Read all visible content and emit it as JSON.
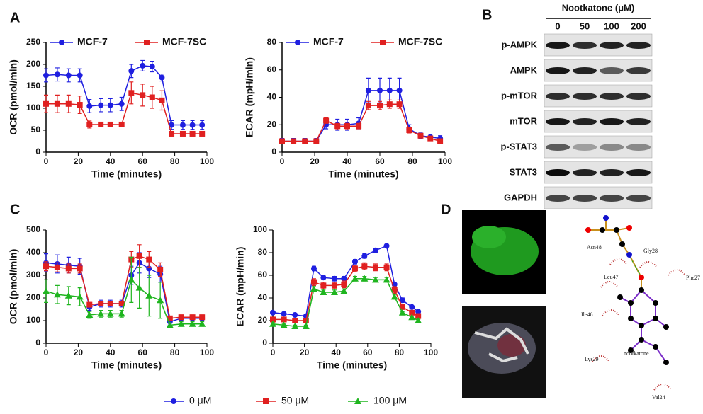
{
  "panels": [
    "A",
    "B",
    "C",
    "D"
  ],
  "chart_data": [
    {
      "type": "line",
      "x_label": "Time (minutes)",
      "y_label": "OCR (pmol/min)",
      "legend": "top",
      "xlim": [
        0,
        100
      ],
      "xticks": [
        0,
        20,
        40,
        60,
        80,
        100
      ],
      "ylim": [
        0,
        250
      ],
      "yticks": [
        0,
        50,
        100,
        150,
        200,
        250
      ],
      "x": [
        0,
        7,
        14,
        21,
        27,
        34,
        40,
        47,
        53,
        60,
        66,
        72,
        78,
        85,
        91,
        97
      ],
      "series": [
        {
          "name": "MCF-7",
          "color": "#1f1fe0",
          "marker": "circle",
          "values": [
            175,
            177,
            175,
            175,
            105,
            107,
            107,
            110,
            185,
            197,
            195,
            170,
            62,
            62,
            62,
            62
          ],
          "errors": [
            15,
            15,
            15,
            15,
            15,
            15,
            15,
            15,
            15,
            12,
            12,
            8,
            10,
            10,
            10,
            10
          ]
        },
        {
          "name": "MCF-7SC",
          "color": "#e02020",
          "marker": "square",
          "values": [
            110,
            110,
            110,
            108,
            63,
            63,
            63,
            63,
            135,
            130,
            125,
            118,
            42,
            42,
            42,
            42
          ],
          "errors": [
            20,
            20,
            20,
            20,
            8,
            5,
            5,
            5,
            25,
            25,
            25,
            22,
            5,
            5,
            5,
            5
          ]
        }
      ]
    },
    {
      "type": "line",
      "x_label": "Time (minutes)",
      "y_label": "ECAR (mpH/min)",
      "legend": "top",
      "xlim": [
        0,
        100
      ],
      "xticks": [
        0,
        20,
        40,
        60,
        80,
        100
      ],
      "ylim": [
        0,
        80
      ],
      "yticks": [
        0,
        20,
        40,
        60,
        80
      ],
      "x": [
        0,
        7,
        14,
        21,
        27,
        34,
        40,
        47,
        53,
        60,
        66,
        72,
        78,
        85,
        91,
        97
      ],
      "series": [
        {
          "name": "MCF-7",
          "color": "#1f1fe0",
          "marker": "circle",
          "values": [
            8,
            8,
            8,
            8,
            20,
            20,
            20,
            21,
            45,
            45,
            45,
            45,
            17,
            12,
            11,
            10
          ],
          "errors": [
            2,
            2,
            2,
            2,
            3,
            4,
            4,
            4,
            9,
            9,
            9,
            9,
            3,
            2,
            2,
            2
          ]
        },
        {
          "name": "MCF-7SC",
          "color": "#e02020",
          "marker": "square",
          "values": [
            8,
            8,
            8,
            8,
            23,
            19,
            19,
            19,
            34,
            34,
            35,
            35,
            16,
            12,
            10,
            8
          ],
          "errors": [
            1,
            1,
            1,
            1,
            2,
            2,
            2,
            2,
            3,
            3,
            3,
            3,
            2,
            1,
            1,
            1
          ]
        }
      ]
    },
    {
      "type": "line",
      "x_label": "Time (minutes)",
      "y_label": "OCR (pmol/min)",
      "legend": "bottom",
      "xlim": [
        0,
        100
      ],
      "xticks": [
        0,
        20,
        40,
        60,
        80,
        100
      ],
      "ylim": [
        0,
        500
      ],
      "yticks": [
        0,
        100,
        200,
        300,
        400,
        500
      ],
      "x": [
        0,
        7,
        14,
        21,
        27,
        34,
        40,
        47,
        53,
        58,
        64,
        71,
        77,
        84,
        91,
        97
      ],
      "series": [
        {
          "name": "0 μM",
          "color": "#1f1fe0",
          "marker": "circle",
          "values": [
            355,
            350,
            345,
            340,
            160,
            175,
            175,
            175,
            300,
            355,
            330,
            305,
            95,
            110,
            110,
            110
          ],
          "errors": [
            40,
            40,
            35,
            35,
            15,
            15,
            15,
            15,
            40,
            45,
            40,
            35,
            15,
            10,
            10,
            10
          ]
        },
        {
          "name": "50 μM",
          "color": "#e02020",
          "marker": "square",
          "values": [
            340,
            335,
            330,
            330,
            170,
            175,
            175,
            175,
            370,
            385,
            370,
            325,
            110,
            115,
            115,
            115
          ],
          "errors": [
            20,
            20,
            20,
            20,
            10,
            10,
            10,
            10,
            35,
            50,
            35,
            30,
            10,
            10,
            10,
            10
          ]
        },
        {
          "name": "100 μM",
          "color": "#1fb51f",
          "marker": "triangle",
          "values": [
            230,
            215,
            210,
            205,
            125,
            130,
            130,
            130,
            280,
            245,
            210,
            190,
            80,
            85,
            85,
            85
          ],
          "errors": [
            50,
            40,
            40,
            40,
            15,
            15,
            15,
            15,
            100,
            90,
            90,
            80,
            10,
            10,
            10,
            10
          ]
        }
      ]
    },
    {
      "type": "line",
      "x_label": "Time (minutes)",
      "y_label": "ECAR (mpH/min)",
      "xlim": [
        0,
        100
      ],
      "xticks": [
        0,
        20,
        40,
        60,
        80,
        100
      ],
      "ylim": [
        0,
        100
      ],
      "yticks": [
        0,
        20,
        40,
        60,
        80,
        100
      ],
      "x": [
        0,
        7,
        14,
        21,
        26,
        32,
        39,
        45,
        52,
        58,
        65,
        72,
        77,
        82,
        88,
        92
      ],
      "series": [
        {
          "color": "#1f1fe0",
          "marker": "circle",
          "values": [
            27,
            26,
            25,
            24,
            66,
            58,
            57,
            57,
            72,
            77,
            82,
            86,
            52,
            38,
            32,
            28
          ],
          "errors": [
            1,
            1,
            1,
            1,
            2,
            2,
            2,
            2,
            2,
            2,
            2,
            1,
            2,
            2,
            1,
            1
          ]
        },
        {
          "color": "#e02020",
          "marker": "square",
          "values": [
            21,
            21,
            20,
            20,
            54,
            51,
            51,
            52,
            66,
            68,
            67,
            67,
            47,
            32,
            27,
            24
          ],
          "errors": [
            2,
            2,
            2,
            2,
            3,
            3,
            3,
            3,
            3,
            3,
            3,
            3,
            3,
            2,
            2,
            2
          ]
        },
        {
          "color": "#1fb51f",
          "marker": "triangle",
          "values": [
            17,
            16,
            15,
            15,
            48,
            45,
            45,
            46,
            57,
            57,
            56,
            56,
            41,
            27,
            23,
            20
          ],
          "errors": [
            1,
            1,
            1,
            1,
            2,
            2,
            2,
            2,
            2,
            2,
            2,
            2,
            2,
            1,
            1,
            1
          ]
        }
      ]
    }
  ],
  "blot": {
    "title": "Nootkatone (μM)",
    "lanes": [
      "0",
      "50",
      "100",
      "200"
    ],
    "rows": [
      "p-AMPK",
      "AMPK",
      "p-mTOR",
      "mTOR",
      "p-STAT3",
      "STAT3",
      "GAPDH"
    ]
  },
  "docking": {
    "labels": [
      "Asn48",
      "Gly28",
      "Leu47",
      "Phe27",
      "Ile46",
      "Lys29",
      "Val24",
      "nootkatone"
    ]
  }
}
